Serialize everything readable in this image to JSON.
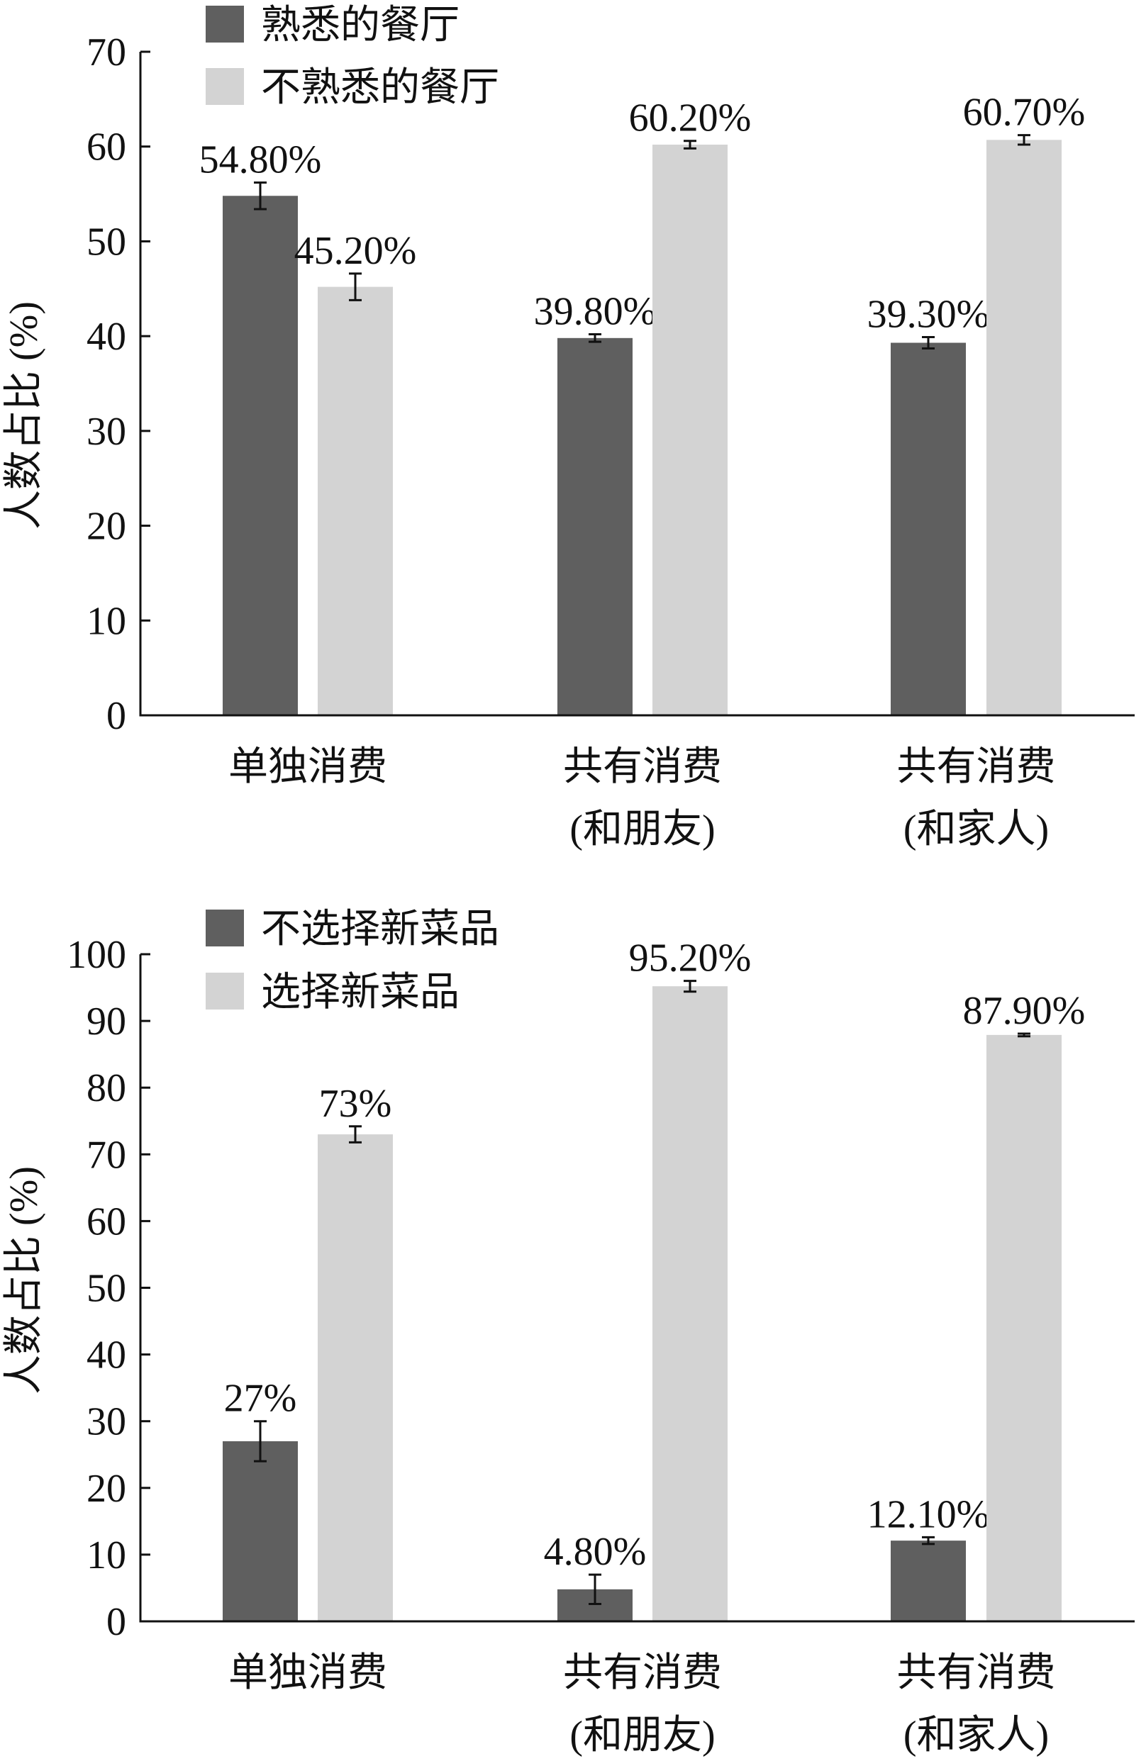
{
  "colors": {
    "dark": "#5f5f5f",
    "light": "#d3d3d3",
    "axis": "#111111"
  },
  "chart_data": [
    {
      "type": "bar",
      "ylabel": "人数占比 (%)",
      "ylim": [
        0,
        70
      ],
      "yticks": [
        0,
        10,
        20,
        30,
        40,
        50,
        60,
        70
      ],
      "categories": [
        [
          "单独消费"
        ],
        [
          "共有消费",
          "(和朋友)"
        ],
        [
          "共有消费",
          "(和家人)"
        ]
      ],
      "legend_position": "top-left",
      "series": [
        {
          "name": "熟悉的餐厅",
          "color": "dark",
          "values": [
            54.8,
            39.8,
            39.3
          ],
          "errors": [
            1.4,
            0.4,
            0.6
          ],
          "labels": [
            "54.80%",
            "39.80%",
            "39.30%"
          ]
        },
        {
          "name": "不熟悉的餐厅",
          "color": "light",
          "values": [
            45.2,
            60.2,
            60.7
          ],
          "errors": [
            1.4,
            0.4,
            0.5
          ],
          "labels": [
            "45.20%",
            "60.20%",
            "60.70%"
          ]
        }
      ]
    },
    {
      "type": "bar",
      "ylabel": "人数占比 (%)",
      "ylim": [
        0,
        100
      ],
      "yticks": [
        0,
        10,
        20,
        30,
        40,
        50,
        60,
        70,
        80,
        90,
        100
      ],
      "categories": [
        [
          "单独消费"
        ],
        [
          "共有消费",
          "(和朋友)"
        ],
        [
          "共有消费",
          "(和家人)"
        ]
      ],
      "legend_position": "top-left",
      "series": [
        {
          "name": "不选择新菜品",
          "color": "dark",
          "values": [
            27,
            4.8,
            12.1
          ],
          "errors": [
            3.0,
            2.2,
            0.5
          ],
          "labels": [
            "27%",
            "4.80%",
            "12.10%"
          ]
        },
        {
          "name": "选择新菜品",
          "color": "light",
          "values": [
            73,
            95.2,
            87.9
          ],
          "errors": [
            1.2,
            0.8,
            0.2
          ],
          "labels": [
            "73%",
            "95.20%",
            "87.90%"
          ]
        }
      ]
    }
  ]
}
